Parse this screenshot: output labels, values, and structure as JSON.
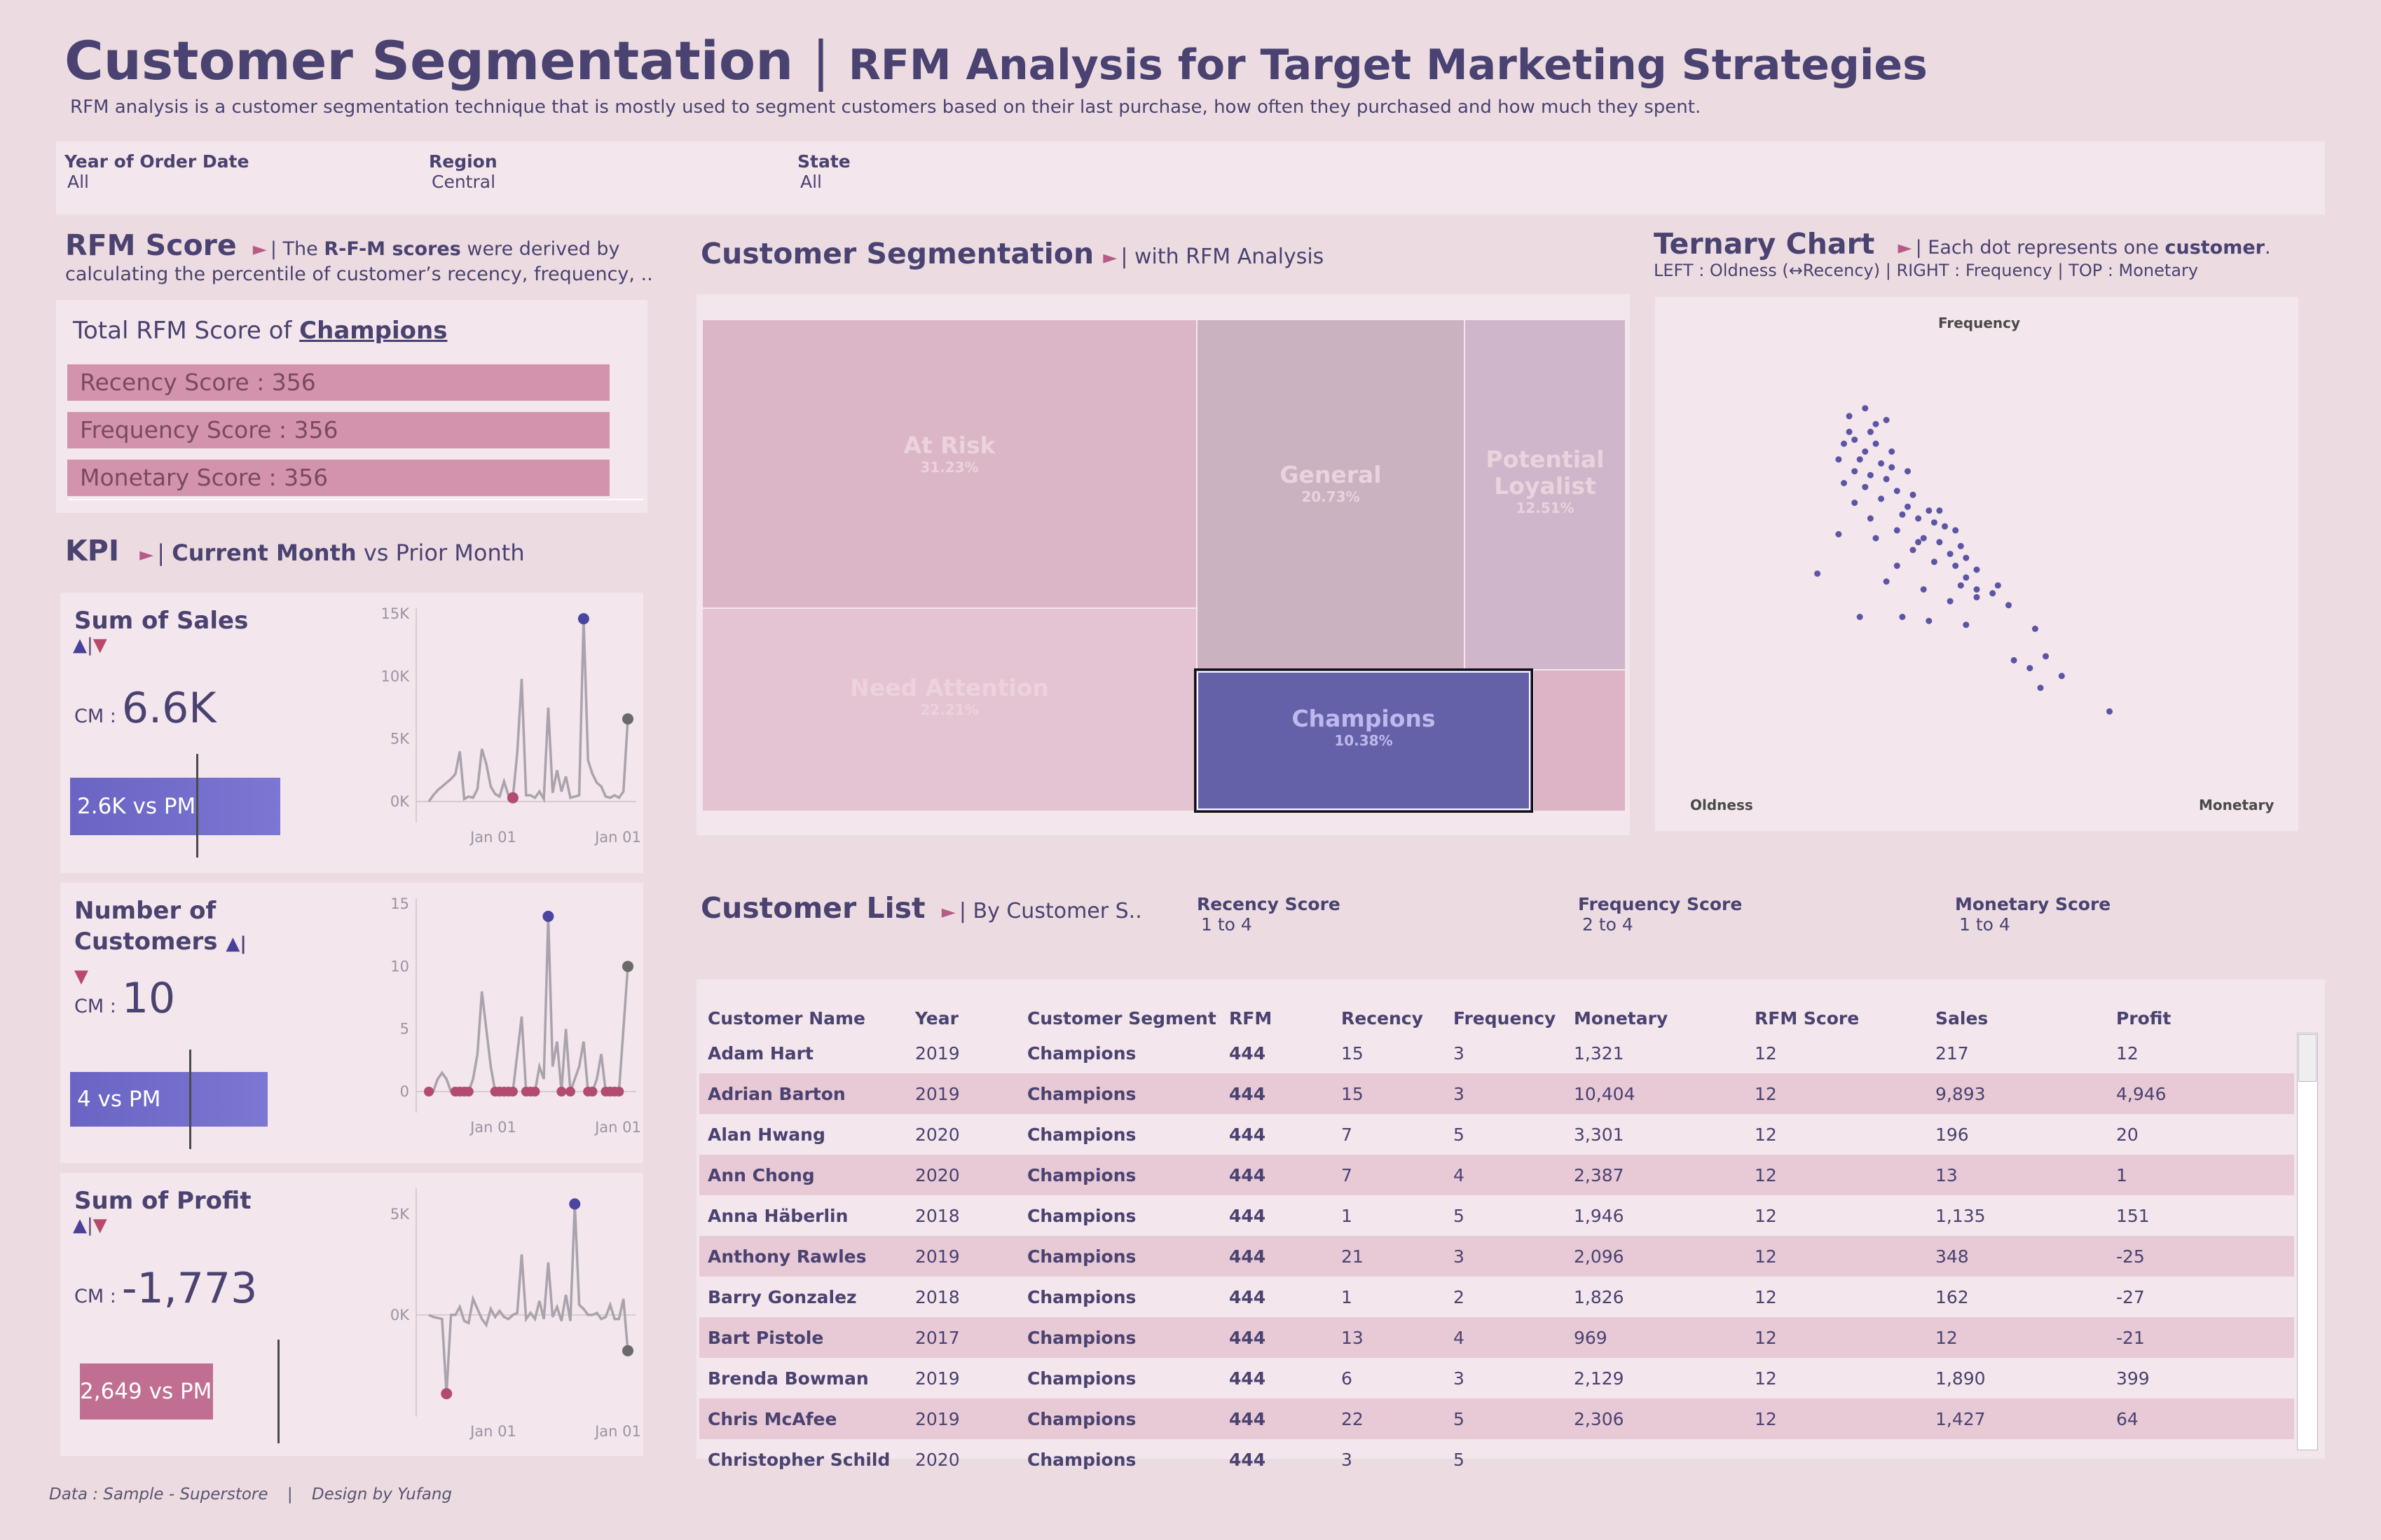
{
  "header": {
    "title": "Customer Segmentation",
    "separator": "|",
    "subtitle_title": "RFM Analysis for Target Marketing Strategies",
    "description": "RFM analysis is a customer segmentation technique that is mostly used to segment customers based on their last purchase, how often they purchased and how much they spent."
  },
  "filters": [
    {
      "label": "Year of Order Date",
      "value": "All"
    },
    {
      "label": "Region",
      "value": "Central"
    },
    {
      "label": "State",
      "value": "All"
    }
  ],
  "rfm_score": {
    "title": "RFM Score",
    "arrow": "►",
    "desc_pre": "| The ",
    "desc_bold": "R-F-M scores",
    "desc_post": " were derived by",
    "desc_line2": "calculating the percentile of customer’s recency, frequency, ..",
    "total_label": "Total RFM Score of ",
    "total_segment": "Champions",
    "bars": [
      "Recency Score : 356",
      "Frequency Score : 356",
      "Monetary Score : 356"
    ]
  },
  "kpi": {
    "title": "KPI",
    "arrow": "►",
    "sub_pre": "| ",
    "sub_bold": "Current Month",
    "sub_post": " vs Prior Month",
    "up_arrow": "▲",
    "bar_sep": "|",
    "down_arrow": "▼",
    "cm_label": "CM :",
    "cards": [
      {
        "title": "Sum of Sales",
        "value": "6.6K",
        "vs_pm": "2.6K vs PM",
        "positive": true,
        "yticks": [
          "15K",
          "10K",
          "5K",
          "0K"
        ],
        "xticks": [
          "Jan 01",
          "Jan 01"
        ]
      },
      {
        "title": "Number of Customers",
        "value": "10",
        "vs_pm": "4 vs PM",
        "positive": true,
        "yticks": [
          "15",
          "10",
          "5",
          "0"
        ],
        "xticks": [
          "Jan 01",
          "Jan 01"
        ]
      },
      {
        "title": "Sum of Profit",
        "value": "-1,773",
        "vs_pm": "2,649 vs PM",
        "positive": false,
        "yticks": [
          "5K",
          "0K"
        ],
        "xticks": [
          "Jan 01",
          "Jan 01"
        ]
      }
    ]
  },
  "segmentation": {
    "title": "Customer Segmentation",
    "arrow": "►",
    "sub": "| with RFM Analysis",
    "segments": [
      {
        "name": "At Risk",
        "pct": "31.23%"
      },
      {
        "name": "Need Attention",
        "pct": "22.21%"
      },
      {
        "name": "General",
        "pct": "20.73%"
      },
      {
        "name": "Potential Loyalist",
        "pct": "12.51%"
      },
      {
        "name": "Champions",
        "pct": "10.38%"
      }
    ]
  },
  "ternary": {
    "title": "Ternary Chart",
    "arrow": "►",
    "sub_pre": "| Each dot represents one ",
    "sub_bold": "customer",
    "sub_post": ".",
    "legend": "LEFT : Oldness (↔Recency) | RIGHT : Frequency | TOP : Monetary",
    "label_top": "Frequency",
    "label_left": "Oldness",
    "label_right": "Monetary"
  },
  "customer_list": {
    "title": "Customer List",
    "arrow": "►",
    "sub": "| By Customer S..",
    "filters": [
      {
        "label": "Recency Score",
        "value": "1 to 4"
      },
      {
        "label": "Frequency Score",
        "value": "2 to 4"
      },
      {
        "label": "Monetary Score",
        "value": "1 to 4"
      }
    ],
    "columns": [
      "Customer Name",
      "Year",
      "Customer Segment",
      "RFM",
      "Recency",
      "Frequency",
      "Monetary",
      "RFM Score",
      "Sales",
      "Profit"
    ],
    "rows": [
      [
        "Adam Hart",
        "2019",
        "Champions",
        "444",
        "15",
        "3",
        "1,321",
        "12",
        "217",
        "12"
      ],
      [
        "Adrian Barton",
        "2019",
        "Champions",
        "444",
        "15",
        "3",
        "10,404",
        "12",
        "9,893",
        "4,946"
      ],
      [
        "Alan Hwang",
        "2020",
        "Champions",
        "444",
        "7",
        "5",
        "3,301",
        "12",
        "196",
        "20"
      ],
      [
        "Ann Chong",
        "2020",
        "Champions",
        "444",
        "7",
        "4",
        "2,387",
        "12",
        "13",
        "1"
      ],
      [
        "Anna Häberlin",
        "2018",
        "Champions",
        "444",
        "1",
        "5",
        "1,946",
        "12",
        "1,135",
        "151"
      ],
      [
        "Anthony Rawles",
        "2019",
        "Champions",
        "444",
        "21",
        "3",
        "2,096",
        "12",
        "348",
        "-25"
      ],
      [
        "Barry Gonzalez",
        "2018",
        "Champions",
        "444",
        "1",
        "2",
        "1,826",
        "12",
        "162",
        "-27"
      ],
      [
        "Bart Pistole",
        "2017",
        "Champions",
        "444",
        "13",
        "4",
        "969",
        "12",
        "12",
        "-21"
      ],
      [
        "Brenda Bowman",
        "2019",
        "Champions",
        "444",
        "6",
        "3",
        "2,129",
        "12",
        "1,890",
        "399"
      ],
      [
        "Chris McAfee",
        "2019",
        "Champions",
        "444",
        "22",
        "5",
        "2,306",
        "12",
        "1,427",
        "64"
      ],
      [
        "Christopher Schild",
        "2020",
        "Champions",
        "444",
        "3",
        "5",
        "",
        "",
        "",
        ""
      ]
    ]
  },
  "footer": {
    "data_label": "Data : ",
    "data_source": "Sample - Superstore",
    "separator": "|",
    "design": "Design by Yufang"
  },
  "colors": {
    "background": "#ecdce2",
    "panel": "#f3e6ec",
    "text": "#4a4270",
    "accent_purple": "#6461a8",
    "accent_pink": "#d493ad",
    "negative": "#c06f92"
  },
  "chart_data": [
    {
      "type": "line",
      "title": "Sum of Sales",
      "ylim": [
        0,
        15000
      ],
      "yticks": [
        "15K",
        "10K",
        "5K",
        "0K"
      ],
      "xticks": [
        "Jan 01",
        "Jan 01"
      ],
      "values": [
        0,
        500,
        900,
        1200,
        1500,
        1800,
        2200,
        4000,
        200,
        400,
        300,
        1000,
        4200,
        3000,
        1200,
        600,
        400,
        1600,
        500,
        300,
        3900,
        9800,
        500,
        500,
        300,
        800,
        200,
        7500,
        700,
        2500,
        800,
        2000,
        300,
        400,
        500,
        14600,
        3300,
        2200,
        1500,
        1200,
        400,
        300,
        500,
        300,
        800,
        6600
      ],
      "max_index": 35,
      "min_index": 19,
      "current_index": 45
    },
    {
      "type": "line",
      "title": "Number of Customers",
      "ylim": [
        0,
        15
      ],
      "yticks": [
        "15",
        "10",
        "5",
        "0"
      ],
      "xticks": [
        "Jan 01",
        "Jan 01"
      ],
      "values": [
        0,
        0,
        1,
        1.5,
        1,
        0,
        0,
        0,
        0,
        0,
        1,
        3,
        8,
        5,
        2,
        0,
        0,
        0,
        0,
        0,
        3,
        6,
        0,
        0,
        0,
        2,
        1,
        14,
        2,
        4,
        0,
        5,
        0,
        1,
        2,
        4,
        0,
        0,
        1,
        3,
        0,
        0,
        0,
        0,
        5,
        10
      ],
      "max_index": 27,
      "min_index": 0,
      "current_index": 45
    },
    {
      "type": "line",
      "title": "Sum of Profit",
      "ylim": [
        -4000,
        6000
      ],
      "yticks": [
        "5K",
        "0K"
      ],
      "xticks": [
        "Jan 01",
        "Jan 01"
      ],
      "values": [
        0,
        -100,
        -150,
        -200,
        -3900,
        0,
        0,
        400,
        -300,
        -400,
        800,
        300,
        -200,
        -500,
        300,
        -100,
        200,
        -100,
        -200,
        0,
        100,
        3000,
        -200,
        100,
        -200,
        700,
        -200,
        2600,
        -100,
        400,
        -300,
        1000,
        -300,
        5500,
        500,
        300,
        0,
        0,
        100,
        -200,
        -100,
        500,
        -200,
        -200,
        800,
        -1773
      ],
      "max_index": 33,
      "min_index": 4,
      "current_index": 45
    },
    {
      "type": "scatter",
      "title": "Ternary Chart",
      "labels": {
        "top": "Frequency",
        "left": "Oldness",
        "right": "Monetary"
      },
      "points": [
        [
          0.29,
          0.86
        ],
        [
          0.26,
          0.84
        ],
        [
          0.33,
          0.83
        ],
        [
          0.31,
          0.82
        ],
        [
          0.3,
          0.8
        ],
        [
          0.27,
          0.78
        ],
        [
          0.25,
          0.77
        ],
        [
          0.31,
          0.77
        ],
        [
          0.29,
          0.75
        ],
        [
          0.34,
          0.75
        ],
        [
          0.24,
          0.73
        ],
        [
          0.28,
          0.73
        ],
        [
          0.32,
          0.72
        ],
        [
          0.27,
          0.7
        ],
        [
          0.37,
          0.7
        ],
        [
          0.3,
          0.69
        ],
        [
          0.33,
          0.68
        ],
        [
          0.25,
          0.67
        ],
        [
          0.29,
          0.66
        ],
        [
          0.35,
          0.65
        ],
        [
          0.38,
          0.64
        ],
        [
          0.32,
          0.63
        ],
        [
          0.27,
          0.62
        ],
        [
          0.37,
          0.61
        ],
        [
          0.41,
          0.6
        ],
        [
          0.36,
          0.59
        ],
        [
          0.39,
          0.58
        ],
        [
          0.42,
          0.57
        ],
        [
          0.44,
          0.56
        ],
        [
          0.35,
          0.55
        ],
        [
          0.24,
          0.54
        ],
        [
          0.31,
          0.53
        ],
        [
          0.4,
          0.53
        ],
        [
          0.43,
          0.52
        ],
        [
          0.47,
          0.51
        ],
        [
          0.38,
          0.5
        ],
        [
          0.45,
          0.49
        ],
        [
          0.48,
          0.48
        ],
        [
          0.42,
          0.47
        ],
        [
          0.35,
          0.46
        ],
        [
          0.46,
          0.46
        ],
        [
          0.5,
          0.45
        ],
        [
          0.2,
          0.44
        ],
        [
          0.33,
          0.42
        ],
        [
          0.47,
          0.41
        ],
        [
          0.4,
          0.4
        ],
        [
          0.53,
          0.39
        ],
        [
          0.5,
          0.38
        ],
        [
          0.45,
          0.37
        ],
        [
          0.56,
          0.36
        ],
        [
          0.28,
          0.33
        ],
        [
          0.41,
          0.32
        ],
        [
          0.48,
          0.31
        ],
        [
          0.61,
          0.3
        ],
        [
          0.43,
          0.6
        ],
        [
          0.48,
          0.43
        ],
        [
          0.54,
          0.41
        ],
        [
          0.36,
          0.33
        ],
        [
          0.63,
          0.23
        ],
        [
          0.57,
          0.22
        ],
        [
          0.6,
          0.2
        ],
        [
          0.66,
          0.18
        ],
        [
          0.62,
          0.15
        ],
        [
          0.75,
          0.09
        ],
        [
          0.5,
          0.4
        ],
        [
          0.46,
          0.55
        ],
        [
          0.3,
          0.58
        ],
        [
          0.39,
          0.52
        ],
        [
          0.26,
          0.8
        ],
        [
          0.34,
          0.71
        ]
      ]
    }
  ]
}
